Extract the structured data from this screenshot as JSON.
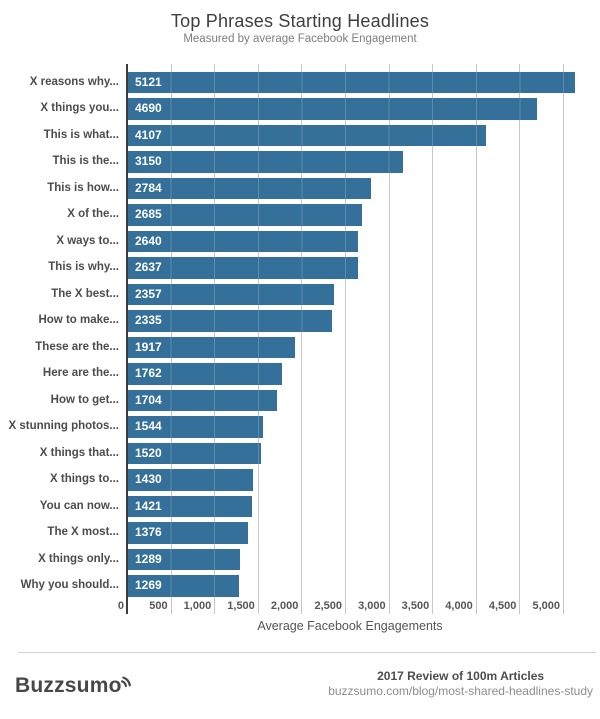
{
  "chart_data": {
    "type": "bar",
    "orientation": "horizontal",
    "title": "Top Phrases Starting Headlines",
    "subtitle": "Measured by average Facebook Engagement",
    "xlabel": "Average Facebook Engagements",
    "categories": [
      "X reasons why...",
      "X things you...",
      "This is what...",
      "This is the...",
      "This is how...",
      "X of the...",
      "X ways to...",
      "This is why...",
      "The X best...",
      "How to make...",
      "These are the...",
      "Here are the...",
      "How to get...",
      "X stunning photos...",
      "X things that...",
      "X things to...",
      "You can now...",
      "The X most...",
      "X things only...",
      "Why you should..."
    ],
    "values": [
      5121,
      4690,
      4107,
      3150,
      2784,
      2685,
      2640,
      2637,
      2357,
      2335,
      1917,
      1762,
      1704,
      1544,
      1520,
      1430,
      1421,
      1376,
      1289,
      1269
    ],
    "x_ticks": [
      "0",
      "500",
      "1,000",
      "1,500",
      "2,000",
      "2,500",
      "3,000",
      "3,500",
      "4,000",
      "4,500",
      "5,000"
    ],
    "x_tick_values": [
      0,
      500,
      1000,
      1500,
      2000,
      2500,
      3000,
      3500,
      4000,
      4500,
      5000
    ],
    "xlim": [
      0,
      5250
    ],
    "grid": true,
    "bar_color": "#35709a",
    "gridline_color": "#c8c8c8",
    "value_label_color": "#ffffff",
    "value_label_position": "inside-left",
    "legend": "none"
  },
  "footer": {
    "brand": "Buzzsumo",
    "credit_line": "2017 Review of 100m Articles",
    "url": "buzzsumo.com/blog/most-shared-headlines-study"
  }
}
